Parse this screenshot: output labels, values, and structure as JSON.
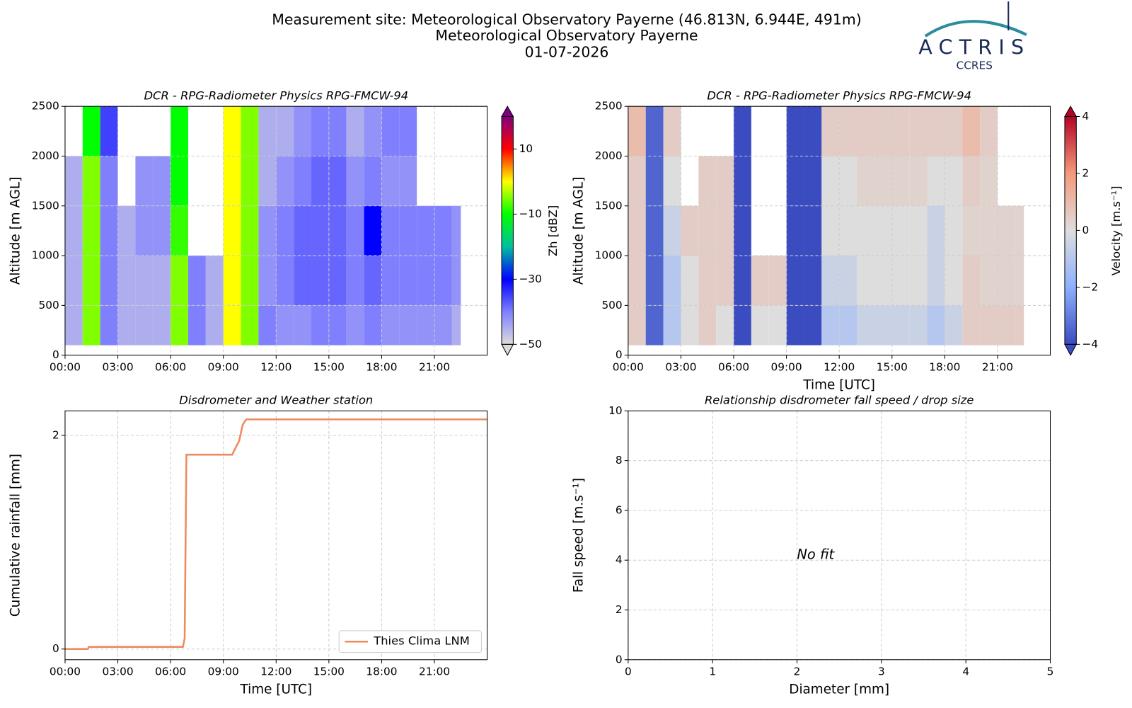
{
  "header": {
    "lines": [
      "Measurement site: Meteorological Observatory Payerne (46.813N, 6.944E, 491m)",
      "Meteorological Observatory Payerne",
      "01-07-2026"
    ]
  },
  "logo": {
    "name": "ACTRIS",
    "sub": "CCRES"
  },
  "chart_data": [
    {
      "type": "heatmap",
      "title": "DCR - RPG-Radiometer Physics RPG-FMCW-94",
      "ylabel": "Altitude [m AGL]",
      "grid": true,
      "xlim": [
        0,
        24
      ],
      "xticks": [
        {
          "value": 0,
          "label": "00:00"
        },
        {
          "value": 3,
          "label": "03:00"
        },
        {
          "value": 6,
          "label": "06:00"
        },
        {
          "value": 9,
          "label": "09:00"
        },
        {
          "value": 12,
          "label": "12:00"
        },
        {
          "value": 15,
          "label": "15:00"
        },
        {
          "value": 18,
          "label": "18:00"
        },
        {
          "value": 21,
          "label": "21:00"
        }
      ],
      "ylim": [
        0,
        2500
      ],
      "yticks": [
        0,
        500,
        1000,
        1500,
        2000,
        2500
      ],
      "x_edges": [
        0,
        1,
        2,
        3,
        4,
        5,
        6,
        7,
        8,
        9,
        10,
        11,
        12,
        13,
        14,
        15,
        16,
        17,
        18,
        19,
        20,
        21,
        22,
        22.5
      ],
      "y_edges": [
        100,
        500,
        1000,
        1500,
        2000,
        2500
      ],
      "z": [
        [
          -45,
          -45,
          -45,
          -45,
          null
        ],
        [
          -5,
          -5,
          -5,
          -5,
          -10
        ],
        [
          -40,
          -40,
          -40,
          -40,
          -35
        ],
        [
          -45,
          -45,
          -45,
          null,
          null
        ],
        [
          -45,
          -45,
          -42,
          -42,
          null
        ],
        [
          -45,
          -45,
          -42,
          -42,
          null
        ],
        [
          -5,
          -5,
          -8,
          -10,
          -10
        ],
        [
          -40,
          -40,
          null,
          null,
          null
        ],
        [
          -45,
          -45,
          null,
          null,
          null
        ],
        [
          0,
          0,
          0,
          0,
          0
        ],
        [
          -5,
          -5,
          -5,
          -5,
          -5
        ],
        [
          -40,
          -42,
          -42,
          -45,
          -45
        ],
        [
          -42,
          -40,
          -40,
          -42,
          -45
        ],
        [
          -42,
          -38,
          -38,
          -40,
          -42
        ],
        [
          -40,
          -38,
          -38,
          -38,
          -40
        ],
        [
          -40,
          -38,
          -38,
          -38,
          -40
        ],
        [
          -42,
          -40,
          -40,
          -42,
          -45
        ],
        [
          -40,
          -38,
          -30,
          -40,
          -42
        ],
        [
          -42,
          -40,
          -40,
          -42,
          -40
        ],
        [
          -42,
          -40,
          -40,
          -42,
          -40
        ],
        [
          -42,
          -40,
          -40,
          null,
          null
        ],
        [
          -42,
          -40,
          -40,
          null,
          null
        ],
        [
          -45,
          -42,
          -42,
          null,
          null
        ]
      ],
      "colorbar": {
        "label": "Zh [dBZ]",
        "lim": [
          -50,
          20
        ],
        "ticks": [
          {
            "value": -50,
            "label": "−50"
          },
          {
            "value": -30,
            "label": "−30"
          },
          {
            "value": -10,
            "label": "−10"
          },
          10
        ],
        "colormap": [
          "#dcdcdc",
          "#8080ff",
          "#0000ff",
          "#00c0a0",
          "#00ff00",
          "#ffff00",
          "#ff0000",
          "#800080"
        ]
      }
    },
    {
      "type": "heatmap",
      "title": "DCR - RPG-Radiometer Physics RPG-FMCW-94",
      "xlabel": "Time [UTC]",
      "ylabel": "Altitude [m AGL]",
      "grid": true,
      "xlim": [
        0,
        24
      ],
      "xticks": [
        {
          "value": 0,
          "label": "00:00"
        },
        {
          "value": 3,
          "label": "03:00"
        },
        {
          "value": 6,
          "label": "06:00"
        },
        {
          "value": 9,
          "label": "09:00"
        },
        {
          "value": 12,
          "label": "12:00"
        },
        {
          "value": 15,
          "label": "15:00"
        },
        {
          "value": 18,
          "label": "18:00"
        },
        {
          "value": 21,
          "label": "21:00"
        }
      ],
      "ylim": [
        0,
        2500
      ],
      "yticks": [
        0,
        500,
        1000,
        1500,
        2000,
        2500
      ],
      "x_edges": [
        0,
        1,
        2,
        3,
        4,
        5,
        6,
        7,
        8,
        9,
        10,
        11,
        12,
        13,
        14,
        15,
        16,
        17,
        18,
        19,
        20,
        21,
        22,
        22.5
      ],
      "y_edges": [
        100,
        500,
        1000,
        1500,
        2000,
        2500
      ],
      "z": [
        [
          0.5,
          0.5,
          0.5,
          0.5,
          1
        ],
        [
          -3.5,
          -3.5,
          -3.5,
          -3.5,
          -3.5
        ],
        [
          -1,
          -1,
          -0.5,
          0,
          0.5
        ],
        [
          0,
          0,
          0.5,
          null,
          null
        ],
        [
          0.5,
          0.5,
          0.5,
          0.5,
          null
        ],
        [
          0,
          0.5,
          0.5,
          0.5,
          null
        ],
        [
          -4,
          -4,
          -4,
          -4,
          -4
        ],
        [
          0,
          0.5,
          null,
          null,
          null
        ],
        [
          0,
          0.5,
          null,
          null,
          null
        ],
        [
          -4,
          -4,
          -4,
          -4,
          -4
        ],
        [
          -4,
          -4,
          -4,
          -4,
          -4
        ],
        [
          -1,
          -0.5,
          0,
          0,
          0.5
        ],
        [
          -1,
          -0.5,
          0,
          0,
          0.5
        ],
        [
          -0.5,
          0,
          0,
          0.3,
          0.5
        ],
        [
          -0.5,
          0,
          0,
          0.3,
          0.5
        ],
        [
          -0.5,
          0,
          0,
          0.3,
          0.5
        ],
        [
          -0.5,
          0,
          0,
          0.3,
          0.5
        ],
        [
          -1,
          -0.5,
          -0.5,
          0,
          0.5
        ],
        [
          -0.5,
          0,
          0,
          0,
          0.5
        ],
        [
          0.5,
          0.5,
          0.3,
          0.5,
          1
        ],
        [
          0.5,
          0.3,
          0.3,
          0.3,
          0.5
        ],
        [
          0.5,
          0.3,
          0.3,
          null,
          null
        ],
        [
          0.5,
          0.3,
          0.3,
          null,
          null
        ]
      ],
      "colorbar": {
        "label": "Velocity [m.s⁻¹]",
        "lim": [
          -4,
          4
        ],
        "ticks": [
          {
            "value": -4,
            "label": "−4"
          },
          {
            "value": -2,
            "label": "−2"
          },
          0,
          2,
          4
        ],
        "colormap": [
          "#3b4cc0",
          "#8db0fe",
          "#dddddd",
          "#f49a7b",
          "#b40426"
        ]
      }
    },
    {
      "type": "line",
      "title": "Disdrometer and Weather station",
      "xlabel": "Time [UTC]",
      "ylabel": "Cumulative rainfall [mm]",
      "grid": true,
      "legend": "lower right",
      "xlim": [
        0,
        24
      ],
      "xticks": [
        {
          "value": 0,
          "label": "00:00"
        },
        {
          "value": 3,
          "label": "03:00"
        },
        {
          "value": 6,
          "label": "06:00"
        },
        {
          "value": 9,
          "label": "09:00"
        },
        {
          "value": 12,
          "label": "12:00"
        },
        {
          "value": 15,
          "label": "15:00"
        },
        {
          "value": 18,
          "label": "18:00"
        },
        {
          "value": 21,
          "label": "21:00"
        }
      ],
      "ylim": [
        -0.1,
        2.23
      ],
      "yticks": [
        0,
        2
      ],
      "x": [
        0,
        1.3,
        1.35,
        6.7,
        6.8,
        6.9,
        9.5,
        9.9,
        10.1,
        10.3,
        24
      ],
      "series": [
        {
          "name": "Thies Clima LNM",
          "color": "#ee8a5e",
          "values": [
            0,
            0,
            0.02,
            0.02,
            0.1,
            1.82,
            1.82,
            1.95,
            2.1,
            2.15,
            2.15
          ]
        }
      ]
    },
    {
      "type": "scatter",
      "title": "Relationship disdrometer fall speed / drop size",
      "xlabel": "Diameter [mm]",
      "ylabel": "Fall speed [m.s⁻¹]",
      "grid": true,
      "xlim": [
        0,
        5
      ],
      "xticks": [
        0,
        1,
        2,
        3,
        4,
        5
      ],
      "ylim": [
        0,
        10
      ],
      "yticks": [
        0,
        2,
        4,
        6,
        8,
        10
      ],
      "annotation": "No fit"
    }
  ]
}
